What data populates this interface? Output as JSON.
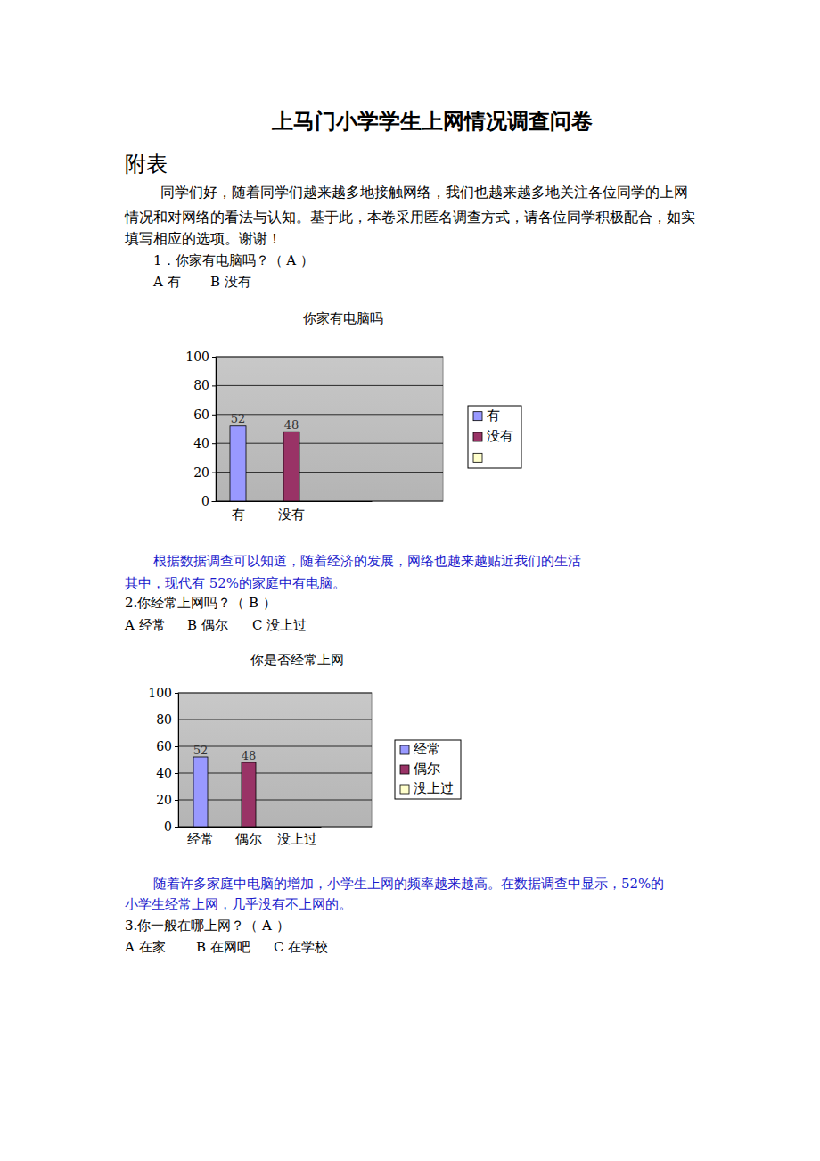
{
  "document": {
    "title": "上马门小学学生上网情况调查问卷",
    "section": "附表",
    "intro": [
      "同学们好，随着同学们越来越多地接触网络，我们也越来越多地关注各位同学的上网",
      "情况和对网络的看法与认知。基于此，本卷采用匿名调查方式，请各位同学积极配合，如实",
      "填写相应的选项。谢谢！"
    ],
    "questions": [
      {
        "text": "1．你家有电脑吗？（ A ）",
        "options": [
          "A 有",
          "B 没有"
        ],
        "analysis": [
          "根据数据调查可以知道，随着经济的发展，网络也越来越贴近我们的生活",
          "其中，现代有 52%的家庭中有电脑。"
        ]
      },
      {
        "text": "2.你经常上网吗？（ B ）",
        "options": [
          "A 经常",
          "B 偶尔",
          "C 没上过"
        ],
        "analysis": [
          "随着许多家庭中电脑的增加，小学生上网的频率越来越高。在数据调查中显示，52%的",
          "小学生经常上网，几乎没有不上网的。"
        ]
      },
      {
        "text": "3.你一般在哪上网？（ A ）",
        "options": [
          "A 在家",
          "B 在网吧",
          "C 在学校"
        ]
      }
    ]
  },
  "chart_data": [
    {
      "type": "bar",
      "title": "你家有电脑吗",
      "categories": [
        "有",
        "没有",
        null
      ],
      "values": [
        52,
        48,
        null
      ],
      "colors": [
        "#9999ff",
        "#993366",
        "#ffffcc"
      ],
      "ylim": [
        0,
        100
      ],
      "yticks": [
        0,
        20,
        40,
        60,
        80,
        100
      ],
      "grid": true,
      "data_labels": true,
      "legend": "right"
    },
    {
      "type": "bar",
      "title": "你是否经常上网",
      "categories": [
        "经常",
        "偶尔",
        "没上过"
      ],
      "values": [
        52,
        48,
        null
      ],
      "colors": [
        "#9999ff",
        "#993366",
        "#ffffcc"
      ],
      "ylim": [
        0,
        100
      ],
      "yticks": [
        0,
        20,
        40,
        60,
        80,
        100
      ],
      "grid": true,
      "data_labels": true,
      "legend": "right"
    }
  ]
}
